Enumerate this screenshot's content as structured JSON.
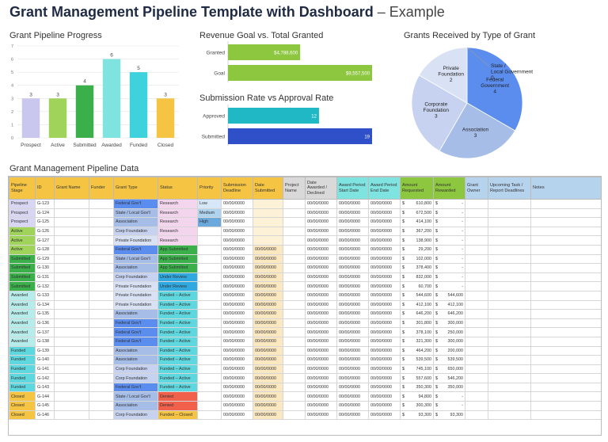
{
  "header": {
    "title_bold": "Grant Management Pipeline Template with Dashboard",
    "title_rest": "– Example"
  },
  "charts_titles": {
    "progress": "Grant Pipeline Progress",
    "revenue": "Revenue Goal vs. Total Granted",
    "submission": "Submission Rate vs Approval Rate",
    "type": "Grants Received by Type of Grant"
  },
  "table_title": "Grant Management Pipeline Data",
  "chart_data": [
    {
      "id": "progress",
      "type": "bar",
      "title": "Grant Pipeline Progress",
      "categories": [
        "Prospect",
        "Active",
        "Submitted",
        "Awarded",
        "Funded",
        "Closed"
      ],
      "values": [
        3,
        3,
        4,
        6,
        5,
        3
      ],
      "colors": [
        "#c9c7ee",
        "#9fd35a",
        "#3aaf4a",
        "#7fe3e0",
        "#3ed2dc",
        "#f5c442"
      ],
      "ylim": [
        0,
        7
      ],
      "yticks": [
        0,
        1,
        2,
        3,
        4,
        5,
        6,
        7
      ],
      "grid": true
    },
    {
      "id": "revenue",
      "type": "bar",
      "orientation": "horizontal",
      "title": "Revenue Goal vs. Total Granted",
      "categories": [
        "Granted",
        "Goal"
      ],
      "values": [
        4788600,
        9557500
      ],
      "labels": [
        "$4,788,600",
        "$9,557,500"
      ],
      "colors": [
        "#8dc63f",
        "#8dc63f"
      ]
    },
    {
      "id": "submission",
      "type": "bar",
      "orientation": "horizontal",
      "title": "Submission Rate vs Approval Rate",
      "categories": [
        "Approved",
        "Submitted"
      ],
      "values": [
        12,
        19
      ],
      "colors": [
        "#1fb8c4",
        "#2f50c8"
      ]
    },
    {
      "id": "type",
      "type": "pie",
      "title": "Grants Received by Type of Grant",
      "slices": [
        {
          "name": "Federal Government",
          "value": 4,
          "color": "#5b8def"
        },
        {
          "name": "Association",
          "value": 3,
          "color": "#a6bde8"
        },
        {
          "name": "Corporate Foundation",
          "value": 3,
          "color": "#c6d2ef"
        },
        {
          "name": "Private Foundation",
          "value": 2,
          "color": "#d9e1f4"
        },
        {
          "name": "State / Local Government",
          "value": 0,
          "color": "#2f5fc8"
        }
      ]
    }
  ],
  "table": {
    "headers": [
      "Pipeline Stage",
      "ID",
      "Grant Name",
      "Funder",
      "Grant Type",
      "Status",
      "Priority",
      "Submission Deadline",
      "Date Submitted",
      "Project Name",
      "Date Awarded / Declined",
      "Award Period Start Date",
      "Award Period End Date",
      "Amount Requested",
      "Amount Rewarded",
      "Grant Owner",
      "Upcoming Task / Report Deadlines",
      "Notes"
    ],
    "header_colors": [
      "#f5c442",
      "#f5c442",
      "#f5c442",
      "#f5c442",
      "#f5c442",
      "#f5c442",
      "#f5c442",
      "#f5c442",
      "#f5c442",
      "#d9d9d9",
      "#d9d9d9",
      "#7fe3e0",
      "#7fe3e0",
      "#8dc63f",
      "#8dc63f",
      "#b6d3ee",
      "#b6d3ee",
      "#b6d3ee"
    ],
    "stage_colors": {
      "Prospect": "#d9d6f3",
      "Active": "#9fd35a",
      "Submitted": "#3aaf4a",
      "Awarded": "#b6ece9",
      "Funded": "#5fd7df",
      "Closed": "#f5c442"
    },
    "type_colors": {
      "Federal Gov't": "#5b8def",
      "State / Local Gov't": "#a6bde8",
      "Association": "#a6bde8",
      "Corp Foundation": "#c6d2ef",
      "Private Foundation": "#d9e1f4"
    },
    "status_colors": {
      "Research": "#f3d6ee",
      "App Submitted": "#3aaf4a",
      "Under Review": "#2fa9e0",
      "Funded – Active": "#5fd7df",
      "Denied": "#f0604b",
      "Funded – Closed": "#f5c442"
    },
    "priority_colors": {
      "Low": "#d6e8f7",
      "Medium": "#aed3ef",
      "High": "#6ba9dd"
    },
    "rows": [
      [
        "Prospect",
        "G-123",
        "",
        "",
        "Federal Gov't",
        "Research",
        "Low",
        "00/00/0000",
        "",
        "",
        "00/00/0000",
        "00/00/0000",
        "00/00/0000",
        "610,800",
        "-",
        "",
        "",
        ""
      ],
      [
        "Prospect",
        "G-124",
        "",
        "",
        "State / Local Gov't",
        "Research",
        "Medium",
        "00/00/0000",
        "",
        "",
        "00/00/0000",
        "00/00/0000",
        "00/00/0000",
        "672,500",
        "-",
        "",
        "",
        ""
      ],
      [
        "Prospect",
        "G-125",
        "",
        "",
        "Association",
        "Research",
        "High",
        "00/00/0000",
        "",
        "",
        "00/00/0000",
        "00/00/0000",
        "00/00/0000",
        "414,100",
        "-",
        "",
        "",
        ""
      ],
      [
        "Active",
        "G-126",
        "",
        "",
        "Corp Foundation",
        "Research",
        "",
        "00/00/0000",
        "",
        "",
        "00/00/0000",
        "00/00/0000",
        "00/00/0000",
        "367,200",
        "-",
        "",
        "",
        ""
      ],
      [
        "Active",
        "G-127",
        "",
        "",
        "Private Foundation",
        "Research",
        "",
        "00/00/0000",
        "",
        "",
        "00/00/0000",
        "00/00/0000",
        "00/00/0000",
        "138,900",
        "-",
        "",
        "",
        ""
      ],
      [
        "Active",
        "G-128",
        "",
        "",
        "Federal Gov't",
        "App Submitted",
        "",
        "00/00/0000",
        "00/00/0000",
        "",
        "00/00/0000",
        "00/00/0000",
        "00/00/0000",
        "29,200",
        "-",
        "",
        "",
        ""
      ],
      [
        "Submitted",
        "G-129",
        "",
        "",
        "State / Local Gov't",
        "App Submitted",
        "",
        "00/00/0000",
        "00/00/0000",
        "",
        "00/00/0000",
        "00/00/0000",
        "00/00/0000",
        "102,000",
        "-",
        "",
        "",
        ""
      ],
      [
        "Submitted",
        "G-130",
        "",
        "",
        "Association",
        "App Submitted",
        "",
        "00/00/0000",
        "00/00/0000",
        "",
        "00/00/0000",
        "00/00/0000",
        "00/00/0000",
        "378,400",
        "-",
        "",
        "",
        ""
      ],
      [
        "Submitted",
        "G-131",
        "",
        "",
        "Corp Foundation",
        "Under Review",
        "",
        "00/00/0000",
        "00/00/0000",
        "",
        "00/00/0000",
        "00/00/0000",
        "00/00/0000",
        "832,000",
        "-",
        "",
        "",
        ""
      ],
      [
        "Submitted",
        "G-132",
        "",
        "",
        "Private Foundation",
        "Under Review",
        "",
        "00/00/0000",
        "00/00/0000",
        "",
        "00/00/0000",
        "00/00/0000",
        "00/00/0000",
        "60,700",
        "-",
        "",
        "",
        ""
      ],
      [
        "Awarded",
        "G-133",
        "",
        "",
        "Private Foundation",
        "Funded – Active",
        "",
        "00/00/0000",
        "00/00/0000",
        "",
        "00/00/0000",
        "00/00/0000",
        "00/00/0000",
        "544,600",
        "544,600",
        "",
        "",
        ""
      ],
      [
        "Awarded",
        "G-134",
        "",
        "",
        "Private Foundation",
        "Funded – Active",
        "",
        "00/00/0000",
        "00/00/0000",
        "",
        "00/00/0000",
        "00/00/0000",
        "00/00/0000",
        "412,100",
        "412,100",
        "",
        "",
        ""
      ],
      [
        "Awarded",
        "G-135",
        "",
        "",
        "Association",
        "Funded – Active",
        "",
        "00/00/0000",
        "00/00/0000",
        "",
        "00/00/0000",
        "00/00/0000",
        "00/00/0000",
        "646,200",
        "646,200",
        "",
        "",
        ""
      ],
      [
        "Awarded",
        "G-136",
        "",
        "",
        "Federal Gov't",
        "Funded – Active",
        "",
        "00/00/0000",
        "00/00/0000",
        "",
        "00/00/0000",
        "00/00/0000",
        "00/00/0000",
        "301,800",
        "300,000",
        "",
        "",
        ""
      ],
      [
        "Awarded",
        "G-137",
        "",
        "",
        "Federal Gov't",
        "Funded – Active",
        "",
        "00/00/0000",
        "00/00/0000",
        "",
        "00/00/0000",
        "00/00/0000",
        "00/00/0000",
        "378,100",
        "250,000",
        "",
        "",
        ""
      ],
      [
        "Awarded",
        "G-138",
        "",
        "",
        "Federal Gov't",
        "Funded – Active",
        "",
        "00/00/0000",
        "00/00/0000",
        "",
        "00/00/0000",
        "00/00/0000",
        "00/00/0000",
        "321,300",
        "300,000",
        "",
        "",
        ""
      ],
      [
        "Funded",
        "G-139",
        "",
        "",
        "Association",
        "Funded – Active",
        "",
        "00/00/0000",
        "00/00/0000",
        "",
        "00/00/0000",
        "00/00/0000",
        "00/00/0000",
        "464,200",
        "200,000",
        "",
        "",
        ""
      ],
      [
        "Funded",
        "G-140",
        "",
        "",
        "Association",
        "Funded – Active",
        "",
        "00/00/0000",
        "00/00/0000",
        "",
        "00/00/0000",
        "00/00/0000",
        "00/00/0000",
        "539,500",
        "539,500",
        "",
        "",
        ""
      ],
      [
        "Funded",
        "G-141",
        "",
        "",
        "Corp Foundation",
        "Funded – Active",
        "",
        "00/00/0000",
        "00/00/0000",
        "",
        "00/00/0000",
        "00/00/0000",
        "00/00/0000",
        "745,100",
        "650,000",
        "",
        "",
        ""
      ],
      [
        "Funded",
        "G-142",
        "",
        "",
        "Corp Foundation",
        "Funded – Active",
        "",
        "00/00/0000",
        "00/00/0000",
        "",
        "00/00/0000",
        "00/00/0000",
        "00/00/0000",
        "557,600",
        "546,200",
        "",
        "",
        ""
      ],
      [
        "Funded",
        "G-143",
        "",
        "",
        "Federal Gov't",
        "Funded – Active",
        "",
        "00/00/0000",
        "00/00/0000",
        "",
        "00/00/0000",
        "00/00/0000",
        "00/00/0000",
        "350,300",
        "350,000",
        "",
        "",
        ""
      ],
      [
        "Closed",
        "G-144",
        "",
        "",
        "State / Local Gov't",
        "Denied",
        "",
        "00/00/0000",
        "00/00/0000",
        "",
        "00/00/0000",
        "00/00/0000",
        "00/00/0000",
        "94,800",
        "-",
        "",
        "",
        ""
      ],
      [
        "Closed",
        "G-145",
        "",
        "",
        "Association",
        "Denied",
        "",
        "00/00/0000",
        "00/00/0000",
        "",
        "00/00/0000",
        "00/00/0000",
        "00/00/0000",
        "300,300",
        "-",
        "",
        "",
        ""
      ],
      [
        "Closed",
        "G-146",
        "",
        "",
        "Corp Foundation",
        "Funded – Closed",
        "",
        "00/00/0000",
        "00/00/0000",
        "",
        "00/00/0000",
        "00/00/0000",
        "00/00/0000",
        "93,300",
        "93,300",
        "",
        "",
        ""
      ]
    ]
  }
}
